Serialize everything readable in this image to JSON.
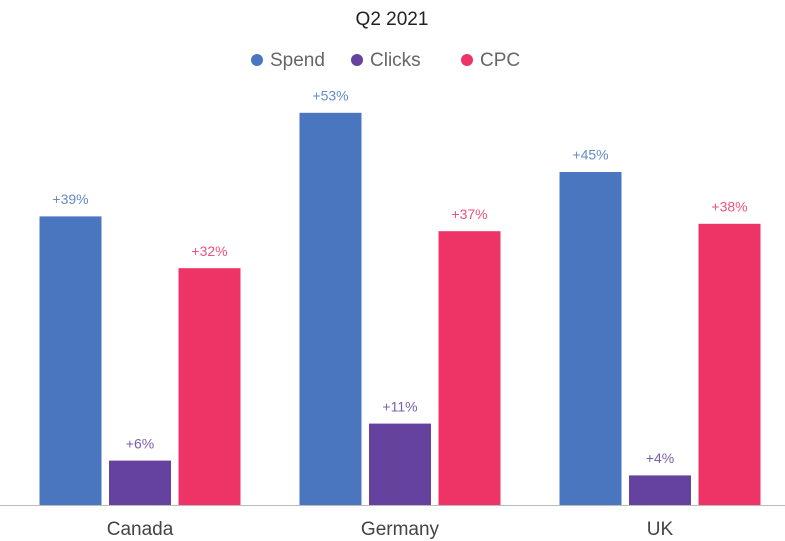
{
  "chart_data": {
    "type": "bar",
    "title": "Q2 2021",
    "categories": [
      "Canada",
      "Germany",
      "UK"
    ],
    "series": [
      {
        "name": "Spend",
        "color": "#4a76c0",
        "values": [
          39,
          53,
          45
        ],
        "value_labels": [
          "+39%",
          "+53%",
          "+45%"
        ]
      },
      {
        "name": "Clicks",
        "color": "#65429d",
        "values": [
          6,
          11,
          4
        ],
        "value_labels": [
          "+6%",
          "+11%",
          "+4%"
        ]
      },
      {
        "name": "CPC",
        "color": "#ee3367",
        "values": [
          32,
          37,
          38
        ],
        "value_labels": [
          "+32%",
          "+37%",
          "+38%"
        ]
      }
    ],
    "legend": "top"
  }
}
